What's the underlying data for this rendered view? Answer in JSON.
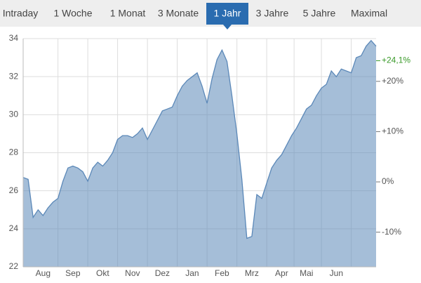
{
  "tabs": {
    "items": [
      "Intraday",
      "1 Woche",
      "1 Monat",
      "3 Monate",
      "1 Jahr",
      "3 Jahre",
      "5 Jahre",
      "Maximal"
    ],
    "active": 4
  },
  "chart_data": {
    "type": "area",
    "categories": [
      null,
      null,
      null,
      null,
      "Aug",
      null,
      null,
      null,
      null,
      null,
      "Sep",
      null,
      null,
      null,
      null,
      null,
      "Okt",
      null,
      null,
      null,
      null,
      null,
      "Nov",
      null,
      null,
      null,
      null,
      null,
      "Dez",
      null,
      null,
      null,
      null,
      null,
      "Jan",
      null,
      null,
      null,
      null,
      null,
      "Feb",
      null,
      null,
      null,
      null,
      null,
      "Mrz",
      null,
      null,
      null,
      null,
      null,
      "Apr",
      null,
      null,
      null,
      null,
      "Mai",
      null,
      null,
      null,
      null,
      null,
      "Jun",
      null,
      null,
      null,
      null,
      null,
      null,
      null,
      null
    ],
    "values": [
      26.7,
      26.6,
      24.6,
      25.0,
      24.7,
      25.1,
      25.4,
      25.6,
      26.5,
      27.2,
      27.3,
      27.2,
      27.0,
      26.5,
      27.2,
      27.5,
      27.3,
      27.6,
      28.0,
      28.7,
      28.9,
      28.9,
      28.8,
      29.0,
      29.3,
      28.7,
      29.2,
      29.7,
      30.2,
      30.3,
      30.4,
      31.0,
      31.5,
      31.8,
      32.0,
      32.2,
      31.5,
      30.6,
      31.9,
      32.9,
      33.4,
      32.8,
      31.0,
      29.0,
      26.6,
      23.5,
      23.6,
      25.8,
      25.6,
      26.4,
      27.2,
      27.6,
      27.9,
      28.4,
      28.9,
      29.3,
      29.8,
      30.3,
      30.5,
      31.0,
      31.4,
      31.6,
      32.3,
      32.0,
      32.4,
      32.3,
      32.2,
      33.0,
      33.1,
      33.6,
      33.9,
      33.6
    ],
    "color": "#5b88b8",
    "ylim": [
      22,
      34
    ],
    "yticks": [
      22,
      24,
      26,
      28,
      30,
      32,
      34
    ],
    "y2lim": [
      -16.9,
      28.5
    ],
    "y2ticks": [
      {
        "value": -10,
        "label": "-10%"
      },
      {
        "value": 0,
        "label": "0%"
      },
      {
        "value": 10,
        "label": "+10%"
      },
      {
        "value": 20,
        "label": "+20%"
      }
    ],
    "annotations": [
      {
        "text": "+24,1%",
        "value": 24.1,
        "color": "#3a9a2a"
      }
    ],
    "grid": true
  }
}
